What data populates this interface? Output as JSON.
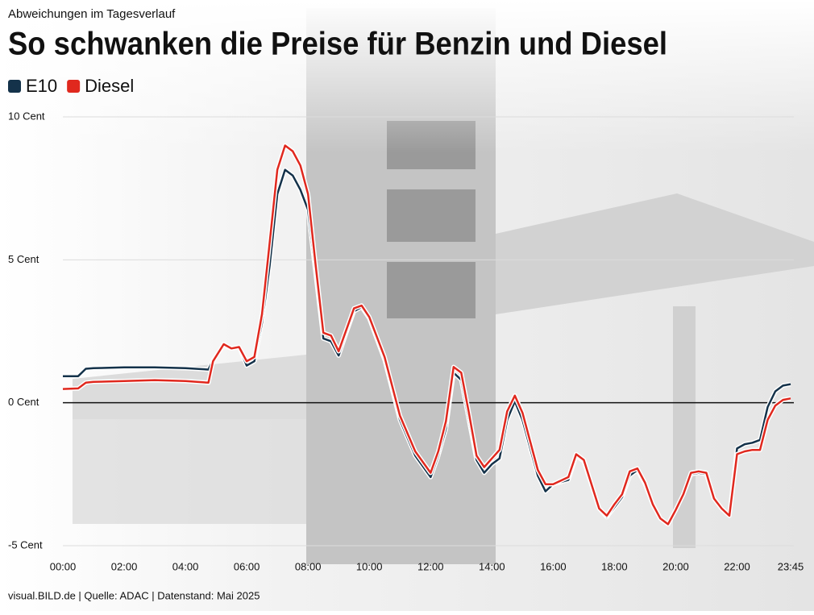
{
  "chart_data": {
    "type": "line",
    "subtitle": "Abweichungen im Tagesverlauf",
    "title": "So schwanken die Preise für Benzin und Diesel",
    "source": "visual.BILD.de | Quelle: ADAC | Datenstand: Mai 2025",
    "legend": "top-left",
    "grid": true,
    "x": [
      0,
      0.5,
      0.75,
      1,
      2,
      3,
      4,
      4.75,
      4.9,
      5.25,
      5.5,
      5.75,
      6,
      6.25,
      6.5,
      6.75,
      7,
      7.25,
      7.5,
      7.75,
      8,
      8.25,
      8.5,
      8.75,
      9,
      9.25,
      9.5,
      9.75,
      10,
      10.5,
      11,
      11.5,
      12,
      12.25,
      12.5,
      12.75,
      13,
      13.25,
      13.5,
      13.75,
      14,
      14.25,
      14.5,
      14.75,
      15,
      15.5,
      15.75,
      16,
      16.5,
      16.75,
      17,
      17.5,
      17.75,
      18,
      18.25,
      18.5,
      18.75,
      19,
      19.25,
      19.5,
      19.75,
      20,
      20.25,
      20.5,
      20.75,
      21,
      21.25,
      21.5,
      21.75,
      22,
      22.25,
      22.5,
      22.75,
      23,
      23.25,
      23.5,
      23.75
    ],
    "series": [
      {
        "name": "E10",
        "color": "#14324a",
        "values": [
          0.93,
          0.93,
          1.19,
          1.21,
          1.24,
          1.24,
          1.21,
          1.16,
          1.5,
          2.0,
          1.9,
          1.95,
          1.3,
          1.45,
          2.8,
          4.8,
          7.3,
          8.15,
          7.95,
          7.45,
          6.75,
          4.5,
          2.25,
          2.15,
          1.65,
          2.45,
          3.2,
          3.35,
          2.95,
          1.5,
          -0.6,
          -1.85,
          -2.6,
          -1.85,
          -0.9,
          1.05,
          0.8,
          -0.6,
          -2.0,
          -2.45,
          -2.15,
          -1.95,
          -0.6,
          0.05,
          -0.6,
          -2.55,
          -3.1,
          -2.85,
          -2.7,
          -1.85,
          -2.05,
          -3.7,
          -4.0,
          -3.65,
          -3.3,
          -2.55,
          -2.35,
          -2.85,
          -3.55,
          -4.05,
          -4.25,
          -3.75,
          -3.2,
          -2.5,
          -2.45,
          -2.5,
          -3.35,
          -3.7,
          -3.95,
          -1.6,
          -1.45,
          -1.4,
          -1.3,
          -0.15,
          0.4,
          0.6,
          0.65
        ]
      },
      {
        "name": "Diesel",
        "color": "#e0281e",
        "values": [
          0.48,
          0.5,
          0.7,
          0.73,
          0.76,
          0.79,
          0.76,
          0.7,
          1.45,
          2.05,
          1.9,
          1.95,
          1.45,
          1.6,
          3.1,
          5.6,
          8.15,
          9.0,
          8.8,
          8.3,
          7.3,
          4.8,
          2.45,
          2.35,
          1.8,
          2.55,
          3.3,
          3.4,
          3.0,
          1.6,
          -0.45,
          -1.7,
          -2.45,
          -1.7,
          -0.65,
          1.25,
          1.05,
          -0.35,
          -1.85,
          -2.25,
          -1.95,
          -1.65,
          -0.3,
          0.25,
          -0.35,
          -2.35,
          -2.85,
          -2.85,
          -2.6,
          -1.8,
          -2.0,
          -3.7,
          -3.95,
          -3.55,
          -3.2,
          -2.4,
          -2.3,
          -2.8,
          -3.55,
          -4.05,
          -4.25,
          -3.75,
          -3.2,
          -2.45,
          -2.4,
          -2.45,
          -3.35,
          -3.7,
          -3.95,
          -1.8,
          -1.7,
          -1.65,
          -1.65,
          -0.6,
          -0.1,
          0.1,
          0.15
        ]
      }
    ],
    "xlim": [
      0,
      23.75
    ],
    "xticks": [
      {
        "value": 0,
        "label": "00:00"
      },
      {
        "value": 2,
        "label": "02:00"
      },
      {
        "value": 4,
        "label": "04:00"
      },
      {
        "value": 6,
        "label": "06:00"
      },
      {
        "value": 8,
        "label": "08:00"
      },
      {
        "value": 10,
        "label": "10:00"
      },
      {
        "value": 12,
        "label": "12:00"
      },
      {
        "value": 14,
        "label": "14:00"
      },
      {
        "value": 16,
        "label": "16:00"
      },
      {
        "value": 18,
        "label": "18:00"
      },
      {
        "value": 20,
        "label": "20:00"
      },
      {
        "value": 22,
        "label": "22:00"
      },
      {
        "value": 23.75,
        "label": "23:45"
      }
    ],
    "ylim": [
      -5,
      10
    ],
    "yticks": [
      {
        "value": 10,
        "label": "10 Cent"
      },
      {
        "value": 5,
        "label": "5 Cent"
      },
      {
        "value": 0,
        "label": "0 Cent"
      },
      {
        "value": -5,
        "label": "-5 Cent"
      }
    ]
  }
}
